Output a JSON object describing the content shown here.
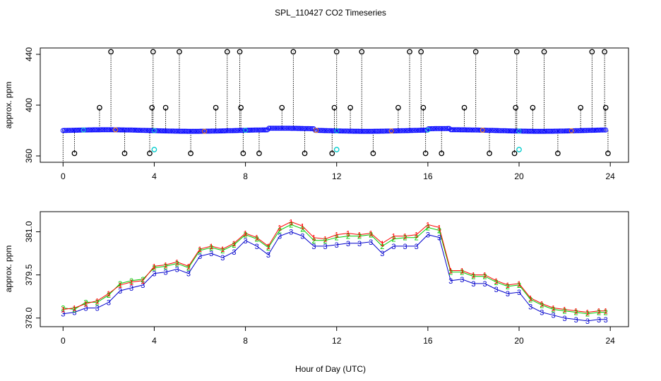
{
  "title": "SPL_110427  CO2 Timeseries",
  "xlabel": "Hour of Day (UTC)",
  "colors": {
    "frame": "#000000",
    "top_points": "#0000ff",
    "top_outliers": "#000000",
    "top_cyan": "#00cccc",
    "top_orange": "#ff8800",
    "series_1": "#ff0000",
    "series_2": "#00cc00",
    "series_3": "#0000cc"
  },
  "chart_data": [
    {
      "type": "scatter",
      "name": "raw",
      "ylabel": "approx. ppm",
      "xlim": [
        -1,
        24.8
      ],
      "ylim": [
        355,
        445
      ],
      "xticks": [
        0,
        4,
        8,
        12,
        16,
        20,
        24
      ],
      "xtick_labels": [
        "0",
        "4",
        "8",
        "12",
        "16",
        "20",
        "24"
      ],
      "yticks": [
        360,
        400,
        440
      ],
      "ytick_labels": [
        "360",
        "400",
        "440"
      ],
      "baseline": 380,
      "outlier_levels": [
        442,
        398,
        362
      ],
      "spikes": [
        {
          "x": 0.5,
          "y": 362
        },
        {
          "x": 1.6,
          "y": 398
        },
        {
          "x": 2.1,
          "y": 442
        },
        {
          "x": 2.7,
          "y": 362
        },
        {
          "x": 3.8,
          "y": 362
        },
        {
          "x": 3.9,
          "y": 398
        },
        {
          "x": 3.95,
          "y": 442
        },
        {
          "x": 4.5,
          "y": 398
        },
        {
          "x": 5.1,
          "y": 442
        },
        {
          "x": 5.6,
          "y": 362
        },
        {
          "x": 6.7,
          "y": 398
        },
        {
          "x": 7.2,
          "y": 442
        },
        {
          "x": 7.75,
          "y": 442
        },
        {
          "x": 7.8,
          "y": 398
        },
        {
          "x": 7.9,
          "y": 362
        },
        {
          "x": 8.6,
          "y": 362
        },
        {
          "x": 9.6,
          "y": 398
        },
        {
          "x": 10.1,
          "y": 442
        },
        {
          "x": 10.6,
          "y": 362
        },
        {
          "x": 11.8,
          "y": 362
        },
        {
          "x": 11.9,
          "y": 398
        },
        {
          "x": 12.0,
          "y": 442
        },
        {
          "x": 12.6,
          "y": 398
        },
        {
          "x": 13.1,
          "y": 442
        },
        {
          "x": 13.6,
          "y": 362
        },
        {
          "x": 14.7,
          "y": 398
        },
        {
          "x": 15.2,
          "y": 442
        },
        {
          "x": 15.7,
          "y": 442
        },
        {
          "x": 15.8,
          "y": 398
        },
        {
          "x": 15.9,
          "y": 362
        },
        {
          "x": 16.6,
          "y": 362
        },
        {
          "x": 17.6,
          "y": 398
        },
        {
          "x": 18.1,
          "y": 442
        },
        {
          "x": 18.7,
          "y": 362
        },
        {
          "x": 19.8,
          "y": 362
        },
        {
          "x": 19.85,
          "y": 398
        },
        {
          "x": 19.9,
          "y": 442
        },
        {
          "x": 20.6,
          "y": 398
        },
        {
          "x": 21.1,
          "y": 442
        },
        {
          "x": 21.7,
          "y": 362
        },
        {
          "x": 22.7,
          "y": 398
        },
        {
          "x": 23.2,
          "y": 442
        },
        {
          "x": 23.75,
          "y": 442
        },
        {
          "x": 23.8,
          "y": 398
        },
        {
          "x": 23.9,
          "y": 362
        }
      ],
      "cyan_points": [
        {
          "x": 4.0,
          "y": 365
        },
        {
          "x": 12.0,
          "y": 365
        },
        {
          "x": 20.0,
          "y": 365
        }
      ]
    },
    {
      "type": "line",
      "name": "averaged",
      "ylabel": "approx. ppm",
      "xlim": [
        -1,
        24.8
      ],
      "ylim": [
        377.7,
        381.7
      ],
      "xticks": [
        0,
        4,
        8,
        12,
        16,
        20,
        24
      ],
      "xtick_labels": [
        "0",
        "4",
        "8",
        "12",
        "16",
        "20",
        "24"
      ],
      "yticks": [
        378.0,
        379.5,
        381.0
      ],
      "ytick_labels": [
        "378.0",
        "379.5",
        "381.0"
      ],
      "x": [
        0,
        0.5,
        1,
        1.5,
        2,
        2.5,
        3,
        3.5,
        4,
        4.5,
        5,
        5.5,
        6,
        6.5,
        7,
        7.5,
        8,
        8.5,
        9,
        9.5,
        10,
        10.5,
        11,
        11.5,
        12,
        12.5,
        13,
        13.5,
        14,
        14.5,
        15,
        15.5,
        16,
        16.5,
        17,
        17.5,
        18,
        18.5,
        19,
        19.5,
        20,
        20.5,
        21,
        21.5,
        22,
        22.5,
        23,
        23.5,
        23.8
      ],
      "series": [
        {
          "name": "1",
          "marker": "1",
          "values": [
            378.3,
            378.35,
            378.5,
            378.6,
            378.85,
            379.15,
            379.25,
            379.3,
            379.8,
            379.85,
            379.95,
            379.8,
            380.4,
            380.5,
            380.4,
            380.6,
            380.95,
            380.8,
            380.5,
            381.15,
            381.35,
            381.2,
            380.8,
            380.75,
            380.9,
            380.95,
            380.9,
            380.95,
            380.6,
            380.85,
            380.85,
            380.9,
            381.25,
            381.15,
            379.65,
            379.65,
            379.5,
            379.5,
            379.3,
            379.15,
            379.2,
            378.7,
            378.5,
            378.35,
            378.3,
            378.25,
            378.2,
            378.25,
            378.25
          ]
        },
        {
          "name": "2",
          "marker": "2",
          "values": [
            378.35,
            378.3,
            378.55,
            378.55,
            378.8,
            379.2,
            379.3,
            379.35,
            379.75,
            379.8,
            379.9,
            379.75,
            380.35,
            380.45,
            380.35,
            380.55,
            380.9,
            380.75,
            380.45,
            381.05,
            381.25,
            381.1,
            380.7,
            380.7,
            380.8,
            380.85,
            380.85,
            380.9,
            380.5,
            380.75,
            380.8,
            380.8,
            381.15,
            381.05,
            379.6,
            379.6,
            379.45,
            379.45,
            379.25,
            379.1,
            379.15,
            378.65,
            378.45,
            378.3,
            378.25,
            378.2,
            378.15,
            378.2,
            378.2
          ]
        },
        {
          "name": "3",
          "marker": "3",
          "values": [
            378.15,
            378.2,
            378.35,
            378.35,
            378.55,
            378.95,
            379.05,
            379.15,
            379.55,
            379.6,
            379.7,
            379.55,
            380.15,
            380.25,
            380.1,
            380.3,
            380.7,
            380.5,
            380.2,
            380.85,
            381.0,
            380.85,
            380.5,
            380.5,
            380.55,
            380.6,
            380.6,
            380.65,
            380.25,
            380.5,
            380.5,
            380.5,
            380.9,
            380.8,
            379.3,
            379.35,
            379.2,
            379.2,
            379.0,
            378.85,
            378.9,
            378.4,
            378.2,
            378.1,
            378.0,
            377.95,
            377.9,
            377.95,
            377.95
          ]
        }
      ]
    }
  ]
}
